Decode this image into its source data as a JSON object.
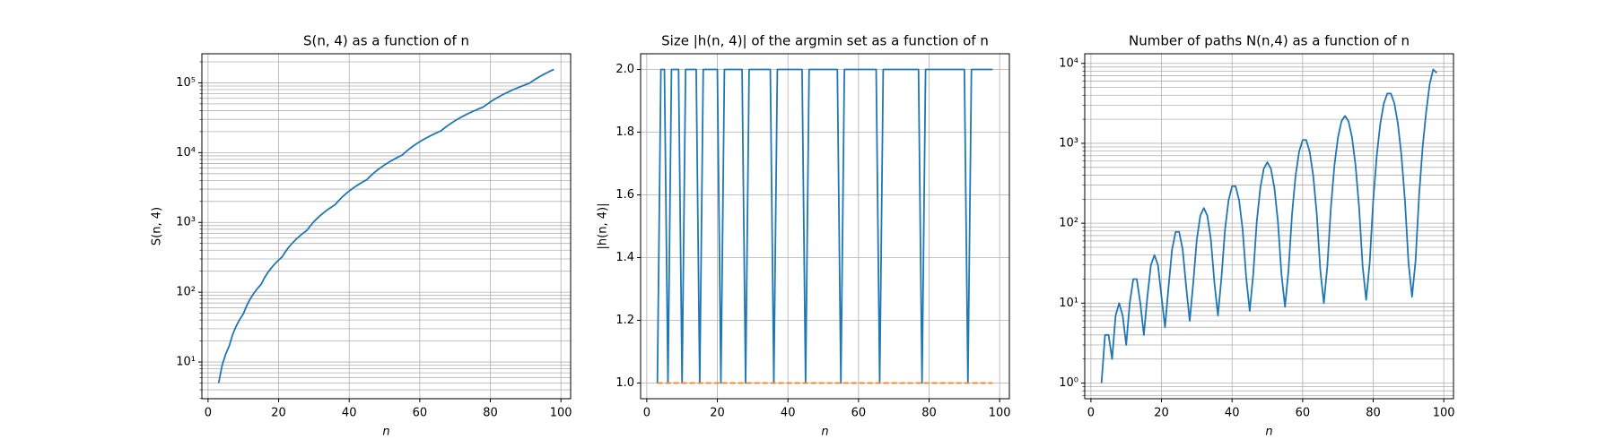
{
  "chart_data": [
    {
      "type": "line",
      "title": "S(n, 4) as a function of n",
      "xlabel": "n",
      "ylabel": "S(n, 4)",
      "x": [
        3,
        4,
        5,
        6,
        7,
        8,
        9,
        10,
        11,
        12,
        13,
        14,
        15,
        16,
        17,
        18,
        19,
        20,
        21,
        22,
        23,
        24,
        25,
        26,
        27,
        28,
        29,
        30,
        31,
        32,
        33,
        34,
        35,
        36,
        37,
        38,
        39,
        40,
        41,
        42,
        43,
        44,
        45,
        46,
        47,
        48,
        49,
        50,
        51,
        52,
        53,
        54,
        55,
        56,
        57,
        58,
        59,
        60,
        61,
        62,
        63,
        64,
        65,
        66,
        67,
        68,
        69,
        70,
        71,
        72,
        73,
        74,
        75,
        76,
        77,
        78,
        79,
        80,
        81,
        82,
        83,
        84,
        85,
        86,
        87,
        88,
        89,
        90,
        91,
        92,
        93,
        94,
        95,
        96,
        97,
        98
      ],
      "series": [
        {
          "color": "#1f77b4",
          "values": [
            5,
            9,
            13,
            17,
            25,
            33,
            41,
            49,
            65,
            81,
            97,
            113,
            129,
            161,
            193,
            225,
            257,
            289,
            321,
            385,
            449,
            513,
            577,
            641,
            705,
            769,
            897,
            1025,
            1153,
            1281,
            1409,
            1537,
            1665,
            1793,
            2049,
            2305,
            2561,
            2817,
            3073,
            3329,
            3585,
            3841,
            4097,
            4609,
            5121,
            5633,
            6145,
            6657,
            7169,
            7681,
            8193,
            8705,
            9217,
            10241,
            11265,
            12289,
            13313,
            14337,
            15361,
            16385,
            17409,
            18433,
            19457,
            20481,
            22529,
            24577,
            26625,
            28673,
            30721,
            32769,
            34817,
            36865,
            38913,
            40961,
            43009,
            45057,
            49153,
            53249,
            57345,
            61441,
            65537,
            69633,
            73729,
            77825,
            81921,
            86017,
            90113,
            94209,
            98305,
            106497,
            114689,
            122881,
            131073,
            139265,
            147457,
            155649
          ]
        }
      ],
      "xlim": [
        -1.75,
        102.75
      ],
      "xticks": [
        0,
        20,
        40,
        60,
        80,
        100
      ],
      "log_y": true,
      "ylim": [
        2.98,
        261000
      ],
      "yticks": [
        {
          "value": 10,
          "label": "10¹"
        },
        {
          "value": 100,
          "label": "10²"
        },
        {
          "value": 1000,
          "label": "10³"
        },
        {
          "value": 10000,
          "label": "10⁴"
        },
        {
          "value": 100000,
          "label": "10⁵"
        }
      ],
      "yminorticks": [
        3,
        4,
        5,
        6,
        7,
        8,
        9,
        20,
        30,
        40,
        50,
        60,
        70,
        80,
        90,
        200,
        300,
        400,
        500,
        600,
        700,
        800,
        900,
        2000,
        3000,
        4000,
        5000,
        6000,
        7000,
        8000,
        9000,
        20000,
        30000,
        40000,
        50000,
        60000,
        70000,
        80000,
        90000,
        200000
      ],
      "grid": true
    },
    {
      "type": "line",
      "title": "Size |h(n, 4)| of the argmin set as a function of n",
      "xlabel": "n",
      "ylabel": "|h(n, 4)|",
      "x": [
        3,
        4,
        5,
        6,
        7,
        8,
        9,
        10,
        11,
        12,
        13,
        14,
        15,
        16,
        17,
        18,
        19,
        20,
        21,
        22,
        23,
        24,
        25,
        26,
        27,
        28,
        29,
        30,
        31,
        32,
        33,
        34,
        35,
        36,
        37,
        38,
        39,
        40,
        41,
        42,
        43,
        44,
        45,
        46,
        47,
        48,
        49,
        50,
        51,
        52,
        53,
        54,
        55,
        56,
        57,
        58,
        59,
        60,
        61,
        62,
        63,
        64,
        65,
        66,
        67,
        68,
        69,
        70,
        71,
        72,
        73,
        74,
        75,
        76,
        77,
        78,
        79,
        80,
        81,
        82,
        83,
        84,
        85,
        86,
        87,
        88,
        89,
        90,
        91,
        92,
        93,
        94,
        95,
        96,
        97,
        98
      ],
      "series": [
        {
          "color": "#1f77b4",
          "values": [
            1,
            2,
            2,
            1,
            2,
            2,
            2,
            1,
            2,
            2,
            2,
            2,
            1,
            2,
            2,
            2,
            2,
            2,
            1,
            2,
            2,
            2,
            2,
            2,
            2,
            1,
            2,
            2,
            2,
            2,
            2,
            2,
            2,
            1,
            2,
            2,
            2,
            2,
            2,
            2,
            2,
            2,
            1,
            2,
            2,
            2,
            2,
            2,
            2,
            2,
            2,
            2,
            1,
            2,
            2,
            2,
            2,
            2,
            2,
            2,
            2,
            2,
            2,
            1,
            2,
            2,
            2,
            2,
            2,
            2,
            2,
            2,
            2,
            2,
            2,
            1,
            2,
            2,
            2,
            2,
            2,
            2,
            2,
            2,
            2,
            2,
            2,
            2,
            1,
            2,
            2,
            2,
            2,
            2,
            2,
            2
          ]
        },
        {
          "color": "#ff7f0e",
          "dashed": true,
          "values": [
            1,
            1,
            1,
            1,
            1,
            1,
            1,
            1,
            1,
            1,
            1,
            1,
            1,
            1,
            1,
            1,
            1,
            1,
            1,
            1,
            1,
            1,
            1,
            1,
            1,
            1,
            1,
            1,
            1,
            1,
            1,
            1,
            1,
            1,
            1,
            1,
            1,
            1,
            1,
            1,
            1,
            1,
            1,
            1,
            1,
            1,
            1,
            1,
            1,
            1,
            1,
            1,
            1,
            1,
            1,
            1,
            1,
            1,
            1,
            1,
            1,
            1,
            1,
            1,
            1,
            1,
            1,
            1,
            1,
            1,
            1,
            1,
            1,
            1,
            1,
            1,
            1,
            1,
            1,
            1,
            1,
            1,
            1,
            1,
            1,
            1,
            1,
            1,
            1,
            1,
            1,
            1,
            1,
            1,
            1,
            1
          ]
        }
      ],
      "xlim": [
        -1.75,
        102.75
      ],
      "xticks": [
        0,
        20,
        40,
        60,
        80,
        100
      ],
      "log_y": false,
      "ylim": [
        0.95,
        2.05
      ],
      "yticks": [
        {
          "value": 1,
          "label": "1.0"
        },
        {
          "value": 1.2,
          "label": "1.2"
        },
        {
          "value": 1.4,
          "label": "1.4"
        },
        {
          "value": 1.6,
          "label": "1.6"
        },
        {
          "value": 1.8,
          "label": "1.8"
        },
        {
          "value": 2,
          "label": "2.0"
        }
      ],
      "grid": true
    },
    {
      "type": "line",
      "title": "Number of paths N(n,4) as a function of n",
      "xlabel": "n",
      "x": [
        3,
        4,
        5,
        6,
        7,
        8,
        9,
        10,
        11,
        12,
        13,
        14,
        15,
        16,
        17,
        18,
        19,
        20,
        21,
        22,
        23,
        24,
        25,
        26,
        27,
        28,
        29,
        30,
        31,
        32,
        33,
        34,
        35,
        36,
        37,
        38,
        39,
        40,
        41,
        42,
        43,
        44,
        45,
        46,
        47,
        48,
        49,
        50,
        51,
        52,
        53,
        54,
        55,
        56,
        57,
        58,
        59,
        60,
        61,
        62,
        63,
        64,
        65,
        66,
        67,
        68,
        69,
        70,
        71,
        72,
        73,
        74,
        75,
        76,
        77,
        78,
        79,
        80,
        81,
        82,
        83,
        84,
        85,
        86,
        87,
        88,
        89,
        90,
        91,
        92,
        93,
        94,
        95,
        96,
        97,
        98
      ],
      "series": [
        {
          "color": "#1f77b4",
          "values": [
            1,
            4,
            4,
            2,
            7,
            10,
            7,
            3,
            10,
            20,
            20,
            10,
            4,
            12,
            30,
            40,
            30,
            12,
            5,
            16,
            47,
            78,
            78,
            47,
            16,
            6,
            18,
            62,
            124,
            155,
            124,
            62,
            18,
            7,
            21,
            83,
            193,
            290,
            290,
            193,
            83,
            21,
            8,
            23,
            104,
            276,
            483,
            580,
            483,
            276,
            104,
            23,
            9,
            26,
            131,
            393,
            786,
            1100,
            1100,
            786,
            393,
            131,
            26,
            10,
            29,
            157,
            524,
            1179,
            1886,
            2200,
            1886,
            1179,
            524,
            157,
            29,
            11,
            32,
            191,
            700,
            1750,
            3150,
            4200,
            4200,
            3150,
            1750,
            700,
            191,
            32,
            12,
            34,
            223,
            891,
            2450,
            5500,
            8400,
            7600
          ]
        }
      ],
      "xlim": [
        -1.75,
        102.75
      ],
      "xticks": [
        0,
        20,
        40,
        60,
        80,
        100
      ],
      "log_y": true,
      "ylim": [
        0.637,
        13200
      ],
      "yticks": [
        {
          "value": 1,
          "label": "10⁰"
        },
        {
          "value": 10,
          "label": "10¹"
        },
        {
          "value": 100,
          "label": "10²"
        },
        {
          "value": 1000,
          "label": "10³"
        },
        {
          "value": 10000,
          "label": "10⁴"
        }
      ],
      "yminorticks": [
        0.7,
        0.8,
        0.9,
        2,
        3,
        4,
        5,
        6,
        7,
        8,
        9,
        20,
        30,
        40,
        50,
        60,
        70,
        80,
        90,
        200,
        300,
        400,
        500,
        600,
        700,
        800,
        900,
        2000,
        3000,
        4000,
        5000,
        6000,
        7000,
        8000,
        9000
      ],
      "grid": true
    }
  ]
}
